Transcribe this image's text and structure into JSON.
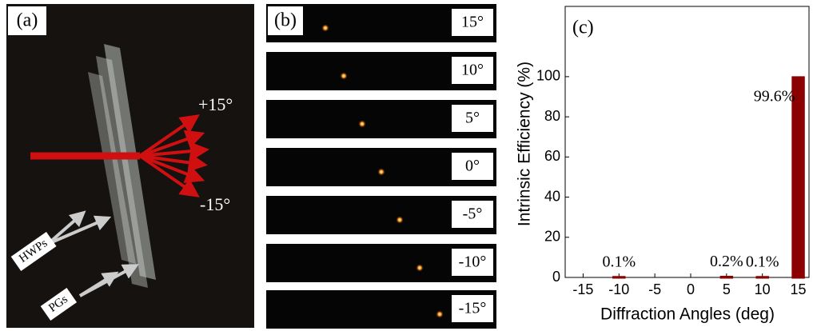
{
  "panel_a": {
    "label": "(a)",
    "angle_top": "+15°",
    "angle_bottom": "-15°",
    "arrow_label_1": "HWPs",
    "arrow_label_2": "PGs"
  },
  "panel_b": {
    "label": "(b)",
    "angles": [
      "15°",
      "10°",
      "5°",
      "0°",
      "-5°",
      "-10°",
      "-15°"
    ]
  },
  "chart_data": {
    "type": "bar",
    "panel_label": "(c)",
    "xlabel": "Diffraction Angles (deg)",
    "ylabel": "Intrinsic Efficiency (%)",
    "x": [
      -10,
      5,
      10,
      15
    ],
    "values": [
      0.1,
      0.2,
      0.1,
      99.6
    ],
    "value_labels": [
      "0.1%",
      "0.2%",
      "0.1%",
      "99.6%"
    ],
    "color": "#8b0000",
    "xlim": [
      -17.5,
      16.5
    ],
    "xticks": [
      -15,
      -10,
      -5,
      0,
      5,
      10,
      15
    ],
    "ylim": [
      0,
      135
    ],
    "yticks": [
      0,
      20,
      40,
      60,
      80,
      100
    ]
  }
}
